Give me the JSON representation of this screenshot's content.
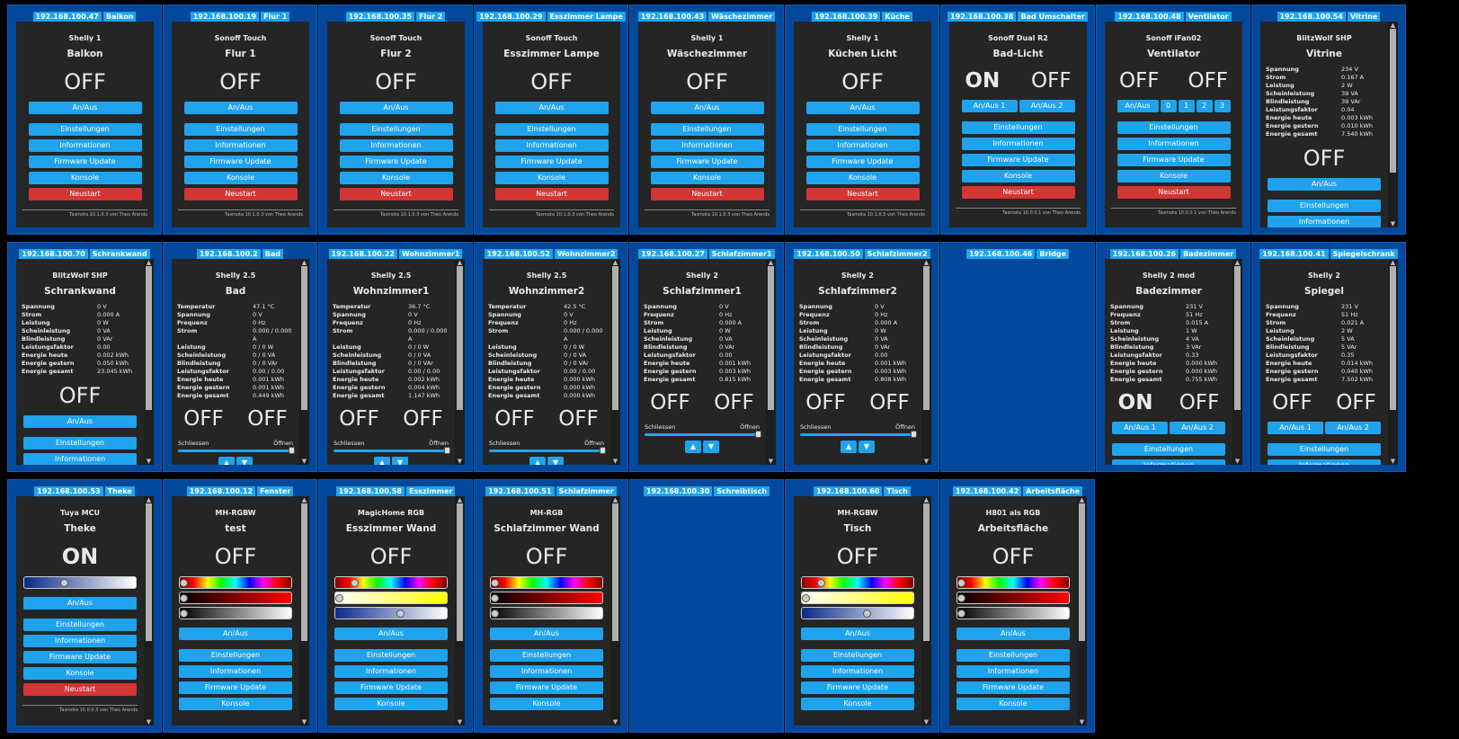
{
  "tiles": [
    {
      "ip": "192.168.100.47",
      "tag": "Balkon",
      "kind": "std",
      "type": "Shelly 1",
      "name": "Balkon",
      "states": [
        "OFF"
      ],
      "buttons": [
        "An/Aus"
      ],
      "menu": [
        "Einstellungen",
        "Informationen",
        "Firmware Update",
        "Konsole"
      ],
      "restart": "Neustart",
      "footer": "Tasmota 10.1.0.3 von Theo Arends"
    },
    {
      "ip": "192.168.100.19",
      "tag": "Flur 1",
      "kind": "std",
      "type": "Sonoff Touch",
      "name": "Flur 1",
      "states": [
        "OFF"
      ],
      "buttons": [
        "An/Aus"
      ],
      "menu": [
        "Einstellungen",
        "Informationen",
        "Firmware Update",
        "Konsole"
      ],
      "restart": "Neustart",
      "footer": "Tasmota 10.1.0.3 von Theo Arends"
    },
    {
      "ip": "192.168.100.35",
      "tag": "Flur 2",
      "kind": "std",
      "type": "Sonoff Touch",
      "name": "Flur 2",
      "states": [
        "OFF"
      ],
      "buttons": [
        "An/Aus"
      ],
      "menu": [
        "Einstellungen",
        "Informationen",
        "Firmware Update",
        "Konsole"
      ],
      "restart": "Neustart",
      "footer": "Tasmota 10.1.0.3 von Theo Arends"
    },
    {
      "ip": "192.168.100.29",
      "tag": "Esszimmer Lampe",
      "kind": "std",
      "type": "Sonoff Touch",
      "name": "Esszimmer Lampe",
      "states": [
        "OFF"
      ],
      "buttons": [
        "An/Aus"
      ],
      "menu": [
        "Einstellungen",
        "Informationen",
        "Firmware Update",
        "Konsole"
      ],
      "restart": "Neustart",
      "footer": "Tasmota 10.1.0.3 von Theo Arends"
    },
    {
      "ip": "192.168.100.43",
      "tag": "Wäschezimmer",
      "kind": "std",
      "type": "Shelly 1",
      "name": "Wäschezimmer",
      "states": [
        "OFF"
      ],
      "buttons": [
        "An/Aus"
      ],
      "menu": [
        "Einstellungen",
        "Informationen",
        "Firmware Update",
        "Konsole"
      ],
      "restart": "Neustart",
      "footer": "Tasmota 10.1.0.3 von Theo Arends"
    },
    {
      "ip": "192.168.100.39",
      "tag": "Küche",
      "kind": "std",
      "type": "Shelly 1",
      "name": "Küchen Licht",
      "states": [
        "OFF"
      ],
      "buttons": [
        "An/Aus"
      ],
      "menu": [
        "Einstellungen",
        "Informationen",
        "Firmware Update",
        "Konsole"
      ],
      "restart": "Neustart",
      "footer": "Tasmota 10.1.0.3 von Theo Arends"
    },
    {
      "ip": "192.168.100.38",
      "tag": "Bad Umschalter",
      "kind": "std",
      "type": "Sonoff Dual R2",
      "name": "Bad-Licht",
      "states": [
        "ON",
        "OFF"
      ],
      "buttons": [
        "An/Aus 1",
        "An/Aus 2"
      ],
      "menu": [
        "Einstellungen",
        "Informationen",
        "Firmware Update",
        "Konsole"
      ],
      "restart": "Neustart",
      "footer": "Tasmota 10.0.0.1 von Theo Arends"
    },
    {
      "ip": "192.168.100.48",
      "tag": "Ventilator",
      "kind": "std",
      "type": "Sonoff iFan02",
      "name": "Ventilator",
      "states": [
        "OFF",
        "OFF"
      ],
      "buttons": [
        "An/Aus",
        "0",
        "1",
        "2",
        "3"
      ],
      "menu": [
        "Einstellungen",
        "Informationen",
        "Firmware Update",
        "Konsole"
      ],
      "restart": "Neustart",
      "footer": "Tasmota 10.0.0.1 von Theo Arends"
    },
    {
      "ip": "192.168.100.54",
      "tag": "Vitrine",
      "kind": "power",
      "type": "BlitzWolf SHP",
      "name": "Vitrine",
      "kv": [
        [
          "Spannung",
          "234 V"
        ],
        [
          "Strom",
          "0.167 A"
        ],
        [
          "Leistung",
          "2 W"
        ],
        [
          "Scheinleistung",
          "39 VA"
        ],
        [
          "Blindleistung",
          "39 VAr"
        ],
        [
          "Leistungsfaktor",
          "0.04"
        ],
        [
          "Energie heute",
          "0.003 kWh"
        ],
        [
          "Energie gestern",
          "0.010 kWh"
        ],
        [
          "Energie gesamt",
          "7.540 kWh"
        ]
      ],
      "states": [
        "OFF"
      ],
      "buttons": [
        "An/Aus"
      ],
      "menu": [
        "Einstellungen",
        "Informationen"
      ]
    },
    {
      "ip": "192.168.100.70",
      "tag": "Schrankwand",
      "kind": "power",
      "type": "BlitzWolf SHP",
      "name": "Schrankwand",
      "kv": [
        [
          "Spannung",
          "0 V"
        ],
        [
          "Strom",
          "0.000 A"
        ],
        [
          "Leistung",
          "0 W"
        ],
        [
          "Scheinleistung",
          "0 VA"
        ],
        [
          "Blindleistung",
          "0 VAr"
        ],
        [
          "Leistungsfaktor",
          "0.00"
        ],
        [
          "Energie heute",
          "0.002 kWh"
        ],
        [
          "Energie gestern",
          "0.050 kWh"
        ],
        [
          "Energie gesamt",
          "23.045 kWh"
        ]
      ],
      "states": [
        "OFF"
      ],
      "buttons": [
        "An/Aus"
      ],
      "menu": [
        "Einstellungen",
        "Informationen"
      ]
    },
    {
      "ip": "192.168.100.2",
      "tag": "Bad",
      "kind": "shutter",
      "type": "Shelly 2.5",
      "name": "Bad",
      "kv": [
        [
          "Temperatur",
          "47.1 °C"
        ],
        [
          "Spannung",
          "0 V"
        ],
        [
          "Frequenz",
          "0 Hz"
        ],
        [
          "Strom",
          "0.000 / 0.000 A"
        ],
        [
          "Leistung",
          "0 / 0 W"
        ],
        [
          "Scheinleistung",
          "0 / 0 VA"
        ],
        [
          "Blindleistung",
          "0 / 0 VAr"
        ],
        [
          "Leistungsfaktor",
          "0.00 / 0.00"
        ],
        [
          "Energie heute",
          "0.001 kWh"
        ],
        [
          "Energie gestern",
          "0.001 kWh"
        ],
        [
          "Energie gesamt",
          "0.449 kWh"
        ]
      ],
      "states": [
        "OFF",
        "OFF"
      ],
      "slider": [
        "Schliessen",
        "Öffnen"
      ],
      "buttons": [
        "▲",
        "▼"
      ]
    },
    {
      "ip": "192.168.100.22",
      "tag": "Wohnzimmer1",
      "kind": "shutter",
      "type": "Shelly 2.5",
      "name": "Wohnzimmer1",
      "kv": [
        [
          "Temperatur",
          "36.7 °C"
        ],
        [
          "Spannung",
          "0 V"
        ],
        [
          "Frequenz",
          "0 Hz"
        ],
        [
          "Strom",
          "0.000 / 0.000 A"
        ],
        [
          "Leistung",
          "0 / 0 W"
        ],
        [
          "Scheinleistung",
          "0 / 0 VA"
        ],
        [
          "Blindleistung",
          "0 / 0 VAr"
        ],
        [
          "Leistungsfaktor",
          "0.00 / 0.00"
        ],
        [
          "Energie heute",
          "0.002 kWh"
        ],
        [
          "Energie gestern",
          "0.004 kWh"
        ],
        [
          "Energie gesamt",
          "1.147 kWh"
        ]
      ],
      "states": [
        "OFF",
        "OFF"
      ],
      "slider": [
        "Schliessen",
        "Öffnen"
      ],
      "buttons": [
        "▲",
        "▼"
      ]
    },
    {
      "ip": "192.168.100.52",
      "tag": "Wohnzimmer2",
      "kind": "shutter",
      "type": "Shelly 2.5",
      "name": "Wohnzimmer2",
      "kv": [
        [
          "Temperatur",
          "42.5 °C"
        ],
        [
          "Spannung",
          "0 V"
        ],
        [
          "Frequenz",
          "0 Hz"
        ],
        [
          "Strom",
          "0.000 / 0.000 A"
        ],
        [
          "Leistung",
          "0 / 0 W"
        ],
        [
          "Scheinleistung",
          "0 / 0 VA"
        ],
        [
          "Blindleistung",
          "0 / 0 VAr"
        ],
        [
          "Leistungsfaktor",
          "0.00 / 0.00"
        ],
        [
          "Energie heute",
          "0.000 kWh"
        ],
        [
          "Energie gestern",
          "0.000 kWh"
        ],
        [
          "Energie gesamt",
          "0.000 kWh"
        ]
      ],
      "states": [
        "OFF",
        "OFF"
      ],
      "slider": [
        "Schliessen",
        "Öffnen"
      ],
      "buttons": [
        "▲",
        "▼"
      ]
    },
    {
      "ip": "192.168.100.27",
      "tag": "Schlafzimmer1",
      "kind": "shutter",
      "type": "Shelly 2",
      "name": "Schlafzimmer1",
      "kv": [
        [
          "Spannung",
          "0 V"
        ],
        [
          "Frequenz",
          "0 Hz"
        ],
        [
          "Strom",
          "0.000 A"
        ],
        [
          "Leistung",
          "0 W"
        ],
        [
          "Scheinleistung",
          "0 VA"
        ],
        [
          "Blindleistung",
          "0 VAr"
        ],
        [
          "Leistungsfaktor",
          "0.00"
        ],
        [
          "Energie heute",
          "0.001 kWh"
        ],
        [
          "Energie gestern",
          "0.003 kWh"
        ],
        [
          "Energie gesamt",
          "0.815 kWh"
        ]
      ],
      "states": [
        "OFF",
        "OFF"
      ],
      "slider": [
        "Schliessen",
        "Öffnen"
      ],
      "buttons": [
        "▲",
        "▼"
      ]
    },
    {
      "ip": "192.168.100.50",
      "tag": "Schlafzimmer2",
      "kind": "shutter",
      "type": "Shelly 2",
      "name": "Schlafzimmer2",
      "kv": [
        [
          "Spannung",
          "0 V"
        ],
        [
          "Frequenz",
          "0 Hz"
        ],
        [
          "Strom",
          "0.000 A"
        ],
        [
          "Leistung",
          "0 W"
        ],
        [
          "Scheinleistung",
          "0 VA"
        ],
        [
          "Blindleistung",
          "0 VAr"
        ],
        [
          "Leistungsfaktor",
          "0.00"
        ],
        [
          "Energie heute",
          "0.001 kWh"
        ],
        [
          "Energie gestern",
          "0.003 kWh"
        ],
        [
          "Energie gesamt",
          "0.808 kWh"
        ]
      ],
      "states": [
        "OFF",
        "OFF"
      ],
      "slider": [
        "Schliessen",
        "Öffnen"
      ],
      "buttons": [
        "▲",
        "▼"
      ]
    },
    {
      "ip": "192.168.100.46",
      "tag": "Bridge",
      "kind": "empty"
    },
    {
      "ip": "192.168.100.26",
      "tag": "Badezimmer",
      "kind": "dual",
      "type": "Shelly 2 mod",
      "name": "Badezimmer",
      "kv": [
        [
          "Spannung",
          "231 V"
        ],
        [
          "Frequenz",
          "51 Hz"
        ],
        [
          "Strom",
          "0.015 A"
        ],
        [
          "Leistung",
          "1 W"
        ],
        [
          "Scheinleistung",
          "4 VA"
        ],
        [
          "Blindleistung",
          "3 VAr"
        ],
        [
          "Leistungsfaktor",
          "0.33"
        ],
        [
          "Energie heute",
          "0.000 kWh"
        ],
        [
          "Energie gestern",
          "0.000 kWh"
        ],
        [
          "Energie gesamt",
          "0.755 kWh"
        ]
      ],
      "states": [
        "ON",
        "OFF"
      ],
      "buttons": [
        "An/Aus 1",
        "An/Aus 2"
      ],
      "menu": [
        "Einstellungen",
        "Informationen"
      ]
    },
    {
      "ip": "192.168.100.41",
      "tag": "Spiegelschrank",
      "kind": "dual",
      "type": "Shelly 2",
      "name": "Spiegel",
      "kv": [
        [
          "Spannung",
          "231 V"
        ],
        [
          "Frequenz",
          "51 Hz"
        ],
        [
          "Strom",
          "0.021 A"
        ],
        [
          "Leistung",
          "2 W"
        ],
        [
          "Scheinleistung",
          "5 VA"
        ],
        [
          "Blindleistung",
          "5 VAr"
        ],
        [
          "Leistungsfaktor",
          "0.35"
        ],
        [
          "Energie heute",
          "0.014 kWh"
        ],
        [
          "Energie gestern",
          "0.040 kWh"
        ],
        [
          "Energie gesamt",
          "7.502 kWh"
        ]
      ],
      "states": [
        "OFF",
        "OFF"
      ],
      "buttons": [
        "An/Aus 1",
        "An/Aus 2"
      ],
      "menu": [
        "Einstellungen",
        "Informationen"
      ]
    },
    {
      "ip": "192.168.100.53",
      "tag": "Theke",
      "kind": "light",
      "type": "Tuya MCU",
      "name": "Theke",
      "states": [
        "ON"
      ],
      "bars": [
        {
          "style": "ctbar",
          "level": 0.35
        }
      ],
      "buttons": [
        "An/Aus"
      ],
      "menu": [
        "Einstellungen",
        "Informationen",
        "Firmware Update",
        "Konsole"
      ],
      "restart": "Neustart",
      "footer": "Tasmota 10.0.0.3 von Theo Arends"
    },
    {
      "ip": "192.168.100.12",
      "tag": "Fenster",
      "kind": "light",
      "type": "MH-RGBW",
      "name": "test",
      "states": [
        "OFF"
      ],
      "bars": [
        {
          "style": "hue",
          "level": 0.0
        },
        {
          "style": "dimred",
          "level": 0.0
        },
        {
          "style": "white",
          "level": 0.0
        }
      ],
      "buttons": [
        "An/Aus"
      ],
      "menu": [
        "Einstellungen",
        "Informationen",
        "Firmware Update",
        "Konsole"
      ]
    },
    {
      "ip": "192.168.100.58",
      "tag": "Esszimmer",
      "kind": "light",
      "type": "MagicHome RGB",
      "name": "Esszimmer Wand",
      "states": [
        "OFF"
      ],
      "bars": [
        {
          "style": "hue",
          "level": 0.15
        },
        {
          "style": "warm",
          "level": 0.0
        },
        {
          "style": "ctbar",
          "level": 0.6
        }
      ],
      "buttons": [
        "An/Aus"
      ],
      "menu": [
        "Einstellungen",
        "Informationen",
        "Firmware Update",
        "Konsole"
      ]
    },
    {
      "ip": "192.168.100.51",
      "tag": "Schlafzimmer",
      "kind": "light",
      "type": "MH-RGB",
      "name": "Schlafzimmer Wand",
      "states": [
        "OFF"
      ],
      "bars": [
        {
          "style": "hue",
          "level": 0.0
        },
        {
          "style": "dimred",
          "level": 0.0
        },
        {
          "style": "white",
          "level": 0.0
        }
      ],
      "buttons": [
        "An/Aus"
      ],
      "menu": [
        "Einstellungen",
        "Informationen",
        "Firmware Update",
        "Konsole"
      ]
    },
    {
      "ip": "192.168.100.30",
      "tag": "Schreibtisch",
      "kind": "empty"
    },
    {
      "ip": "192.168.100.60",
      "tag": "Tisch",
      "kind": "light",
      "type": "MH-RGBW",
      "name": "Tisch",
      "states": [
        "OFF"
      ],
      "bars": [
        {
          "style": "hue",
          "level": 0.15
        },
        {
          "style": "warm",
          "level": 0.0
        },
        {
          "style": "ctbar",
          "level": 0.6
        }
      ],
      "buttons": [
        "An/Aus"
      ],
      "menu": [
        "Einstellungen",
        "Informationen",
        "Firmware Update",
        "Konsole"
      ]
    },
    {
      "ip": "192.168.100.42",
      "tag": "Arbeitsfläche",
      "kind": "light",
      "type": "H801 als RGB",
      "name": "Arbeitsfläche",
      "states": [
        "OFF"
      ],
      "bars": [
        {
          "style": "hue",
          "level": 0.0
        },
        {
          "style": "dimred",
          "level": 0.0
        },
        {
          "style": "white",
          "level": 0.0
        }
      ],
      "buttons": [
        "An/Aus"
      ],
      "menu": [
        "Einstellungen",
        "Informationen",
        "Firmware Update",
        "Konsole"
      ]
    }
  ]
}
